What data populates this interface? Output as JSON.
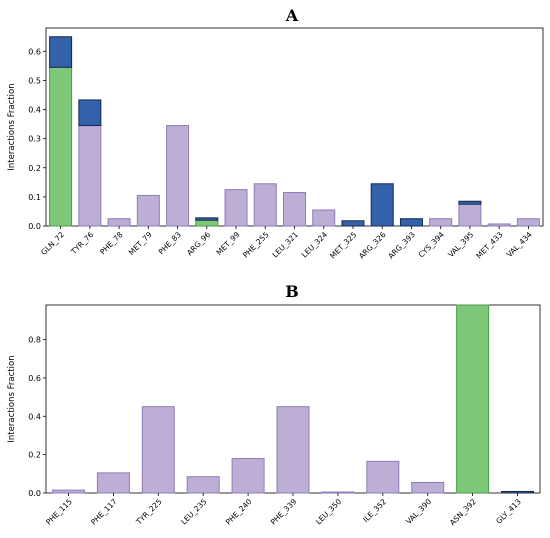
{
  "colors": {
    "hbond": "#7ec87a",
    "hbond_edge": "#4f9a4a",
    "hydrophobic": "#bdaed6",
    "hydrophobic_edge": "#8f7cb8",
    "ionic": "#3462aa",
    "ionic_edge": "#13284e"
  },
  "chart_data": [
    {
      "type": "bar",
      "stacked": true,
      "title": "A",
      "ylabel": "Interactions Fraction",
      "xlabel": "",
      "ylim": [
        0,
        0.68
      ],
      "yticks": [
        "0.0",
        "0.1",
        "0.2",
        "0.3",
        "0.4",
        "0.5",
        "0.6"
      ],
      "ytick_values": [
        0,
        0.1,
        0.2,
        0.3,
        0.4,
        0.5,
        0.6
      ],
      "categories": [
        "GLN_72",
        "TYR_76",
        "PHE_78",
        "MET_79",
        "PHE_83",
        "ARG_96",
        "MET_99",
        "PHE_255",
        "LEU_321",
        "LEU_324",
        "MET_325",
        "ARG_326",
        "ARG_393",
        "CYS_394",
        "VAL_395",
        "MET_433",
        "VAL_434"
      ],
      "series": [
        {
          "color_key": "hbond",
          "values": [
            0.545,
            0,
            0,
            0,
            0,
            0.02,
            0,
            0,
            0,
            0,
            0,
            0,
            0,
            0,
            0,
            0,
            0
          ]
        },
        {
          "color_key": "hydrophobic",
          "values": [
            0,
            0.345,
            0.025,
            0.105,
            0.345,
            0,
            0.125,
            0.145,
            0.115,
            0.055,
            0,
            0,
            0,
            0.025,
            0.075,
            0.007,
            0.025
          ]
        },
        {
          "color_key": "ionic",
          "values": [
            0.105,
            0.088,
            0,
            0,
            0,
            0.008,
            0,
            0,
            0,
            0,
            0.018,
            0.145,
            0.025,
            0,
            0.01,
            0,
            0
          ]
        }
      ]
    },
    {
      "type": "bar",
      "stacked": true,
      "title": "B",
      "ylabel": "Interactions Fraction",
      "xlabel": "",
      "ylim": [
        0,
        0.98
      ],
      "yticks": [
        "0.0",
        "0.2",
        "0.4",
        "0.6",
        "0.8"
      ],
      "ytick_values": [
        0,
        0.2,
        0.4,
        0.6,
        0.8
      ],
      "categories": [
        "PHE_115",
        "PHE_117",
        "TYR_225",
        "LEU_235",
        "PHE_240",
        "PHE_339",
        "LEU_350",
        "ILE_352",
        "VAL_390",
        "ASN_392",
        "GLY_413"
      ],
      "series": [
        {
          "color_key": "hbond",
          "values": [
            0,
            0,
            0,
            0,
            0,
            0,
            0,
            0,
            0,
            0.98,
            0
          ]
        },
        {
          "color_key": "hydrophobic",
          "values": [
            0.015,
            0.105,
            0.45,
            0.085,
            0.18,
            0.45,
            0.005,
            0.165,
            0.055,
            0,
            0
          ]
        },
        {
          "color_key": "ionic",
          "values": [
            0,
            0,
            0,
            0,
            0,
            0,
            0,
            0,
            0,
            0,
            0.008
          ]
        }
      ]
    }
  ]
}
